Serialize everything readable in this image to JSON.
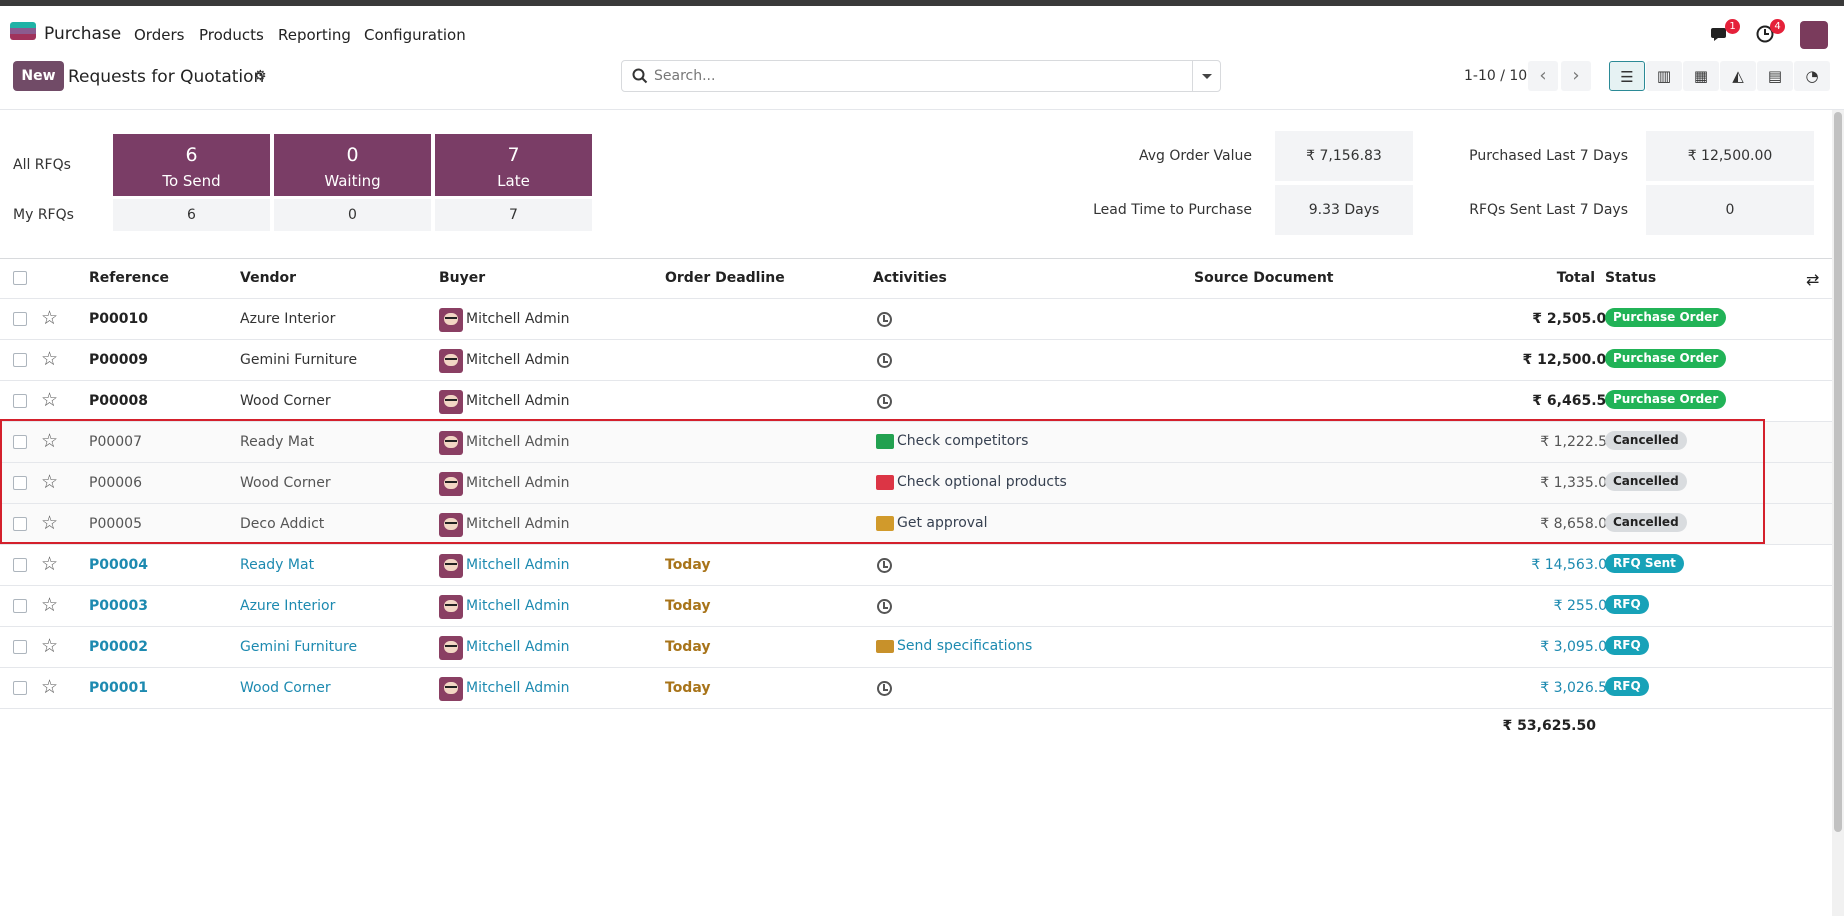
{
  "nav": {
    "app_name": "Purchase",
    "menu": [
      "Orders",
      "Products",
      "Reporting",
      "Configuration"
    ],
    "messages_count": "1",
    "activities_count": "4"
  },
  "control": {
    "new_label": "New",
    "title": "Requests for Quotation",
    "search_placeholder": "Search...",
    "pager": "1-10 / 10"
  },
  "dashboard": {
    "all_label": "All RFQs",
    "my_label": "My RFQs",
    "tiles": [
      {
        "num": "6",
        "label": "To Send",
        "my": "6"
      },
      {
        "num": "0",
        "label": "Waiting",
        "my": "0"
      },
      {
        "num": "7",
        "label": "Late",
        "my": "7"
      }
    ],
    "kpis": {
      "avg_order_label": "Avg Order Value",
      "avg_order_value": "₹ 7,156.83",
      "lead_time_label": "Lead Time to Purchase",
      "lead_time_value": "9.33 Days",
      "purchased_label": "Purchased Last 7 Days",
      "purchased_value": "₹ 12,500.00",
      "rfqs_sent_label": "RFQs Sent Last 7 Days",
      "rfqs_sent_value": "0"
    }
  },
  "table": {
    "headers": [
      "Reference",
      "Vendor",
      "Buyer",
      "Order Deadline",
      "Activities",
      "Source Document",
      "Total",
      "Status"
    ],
    "rows": [
      {
        "ref": "P00010",
        "vendor": "Azure Interior",
        "buyer": "Mitchell Admin",
        "deadline": "",
        "activity": "",
        "activity_icon": "clock-icon",
        "total": "₹ 2,505.00",
        "status": "Purchase Order"
      },
      {
        "ref": "P00009",
        "vendor": "Gemini Furniture",
        "buyer": "Mitchell Admin",
        "deadline": "",
        "activity": "",
        "activity_icon": "clock-icon",
        "total": "₹ 12,500.00",
        "status": "Purchase Order"
      },
      {
        "ref": "P00008",
        "vendor": "Wood Corner",
        "buyer": "Mitchell Admin",
        "deadline": "",
        "activity": "",
        "activity_icon": "clock-icon",
        "total": "₹ 6,465.50",
        "status": "Purchase Order"
      },
      {
        "ref": "P00007",
        "vendor": "Ready Mat",
        "buyer": "Mitchell Admin",
        "deadline": "",
        "activity": "Check competitors",
        "activity_icon": "todo-green-icon",
        "total": "₹ 1,222.50",
        "status": "Cancelled"
      },
      {
        "ref": "P00006",
        "vendor": "Wood Corner",
        "buyer": "Mitchell Admin",
        "deadline": "",
        "activity": "Check optional products",
        "activity_icon": "todo-red-icon",
        "total": "₹ 1,335.00",
        "status": "Cancelled"
      },
      {
        "ref": "P00005",
        "vendor": "Deco Addict",
        "buyer": "Mitchell Admin",
        "deadline": "",
        "activity": "Get approval",
        "activity_icon": "todo-orange-icon",
        "total": "₹ 8,658.00",
        "status": "Cancelled"
      },
      {
        "ref": "P00004",
        "vendor": "Ready Mat",
        "buyer": "Mitchell Admin",
        "deadline": "Today",
        "activity": "",
        "activity_icon": "clock-icon",
        "total": "₹ 14,563.00",
        "status": "RFQ Sent"
      },
      {
        "ref": "P00003",
        "vendor": "Azure Interior",
        "buyer": "Mitchell Admin",
        "deadline": "Today",
        "activity": "",
        "activity_icon": "clock-icon",
        "total": "₹ 255.00",
        "status": "RFQ"
      },
      {
        "ref": "P00002",
        "vendor": "Gemini Furniture",
        "buyer": "Mitchell Admin",
        "deadline": "Today",
        "activity": "Send specifications",
        "activity_icon": "envelope-icon",
        "total": "₹ 3,095.00",
        "status": "RFQ"
      },
      {
        "ref": "P00001",
        "vendor": "Wood Corner",
        "buyer": "Mitchell Admin",
        "deadline": "Today",
        "activity": "",
        "activity_icon": "clock-icon",
        "total": "₹ 3,026.50",
        "status": "RFQ"
      }
    ],
    "grand_total": "₹ 53,625.50"
  },
  "colors": {
    "brand": "#714b67",
    "tile": "#7a3d66",
    "status_po": "#21b357",
    "status_rfq": "#17a2b8",
    "status_cancelled": "#d9dcdf",
    "highlight": "#d4202c",
    "link": "#1d8ab0",
    "deadline": "#a8741a"
  }
}
